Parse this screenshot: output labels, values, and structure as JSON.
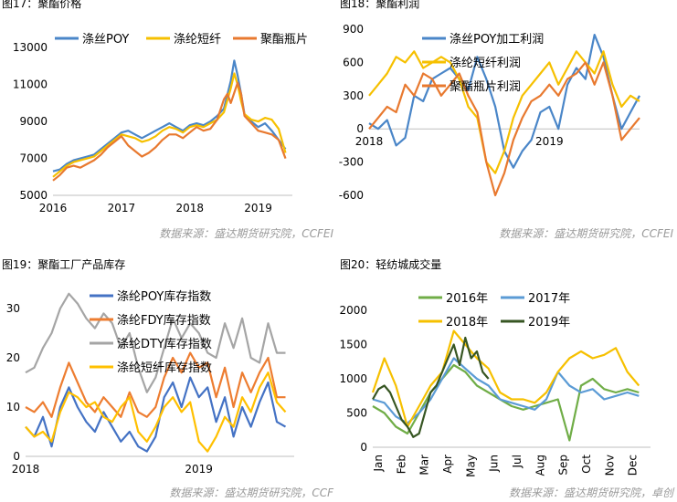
{
  "colors": {
    "blue": "#4a86c8",
    "orange": "#e8792f",
    "gold": "#f6c000",
    "gray": "#a5a5a5",
    "green": "#70ad47",
    "darkgreen": "#375623",
    "blue2": "#4472c4",
    "orange2": "#ed7d31",
    "yellow2": "#ffc000",
    "sky": "#5b9bd5"
  },
  "chart_data": [
    {
      "type": "line",
      "title": "图17：聚酯价格",
      "source": "数据来源：盛达期货研究院，CCFEI",
      "legend_position": "top",
      "xlim": [
        2016,
        2019.5
      ],
      "x_ticks": [
        2016,
        2017,
        2018,
        2019
      ],
      "x_tick_labels": [
        "2016",
        "2017",
        "2018",
        "2019"
      ],
      "ylim": [
        5000,
        14000
      ],
      "y_ticks": [
        5000,
        7000,
        9000,
        11000,
        13000
      ],
      "series": [
        {
          "name": "涤丝POY",
          "color_key": "blue",
          "x": [
            2016.0,
            2016.1,
            2016.2,
            2016.3,
            2016.4,
            2016.5,
            2016.6,
            2016.7,
            2016.8,
            2016.9,
            2017.0,
            2017.1,
            2017.2,
            2017.3,
            2017.4,
            2017.5,
            2017.6,
            2017.7,
            2017.8,
            2017.9,
            2018.0,
            2018.1,
            2018.2,
            2018.3,
            2018.4,
            2018.5,
            2018.6,
            2018.65,
            2018.7,
            2018.75,
            2018.8,
            2018.9,
            2019.0,
            2019.1,
            2019.2,
            2019.3,
            2019.4
          ],
          "y": [
            6300,
            6400,
            6700,
            6900,
            7000,
            7100,
            7200,
            7500,
            7800,
            8100,
            8400,
            8500,
            8300,
            8100,
            8300,
            8500,
            8700,
            8900,
            8700,
            8500,
            8800,
            8900,
            8800,
            9000,
            9300,
            9700,
            11200,
            12300,
            11500,
            10500,
            9400,
            9000,
            8700,
            8900,
            8500,
            8000,
            7500
          ]
        },
        {
          "name": "涤纶短纤",
          "color_key": "gold",
          "x": [
            2016.0,
            2016.1,
            2016.2,
            2016.3,
            2016.4,
            2016.5,
            2016.6,
            2016.7,
            2016.8,
            2016.9,
            2017.0,
            2017.1,
            2017.2,
            2017.3,
            2017.4,
            2017.5,
            2017.6,
            2017.7,
            2017.8,
            2017.9,
            2018.0,
            2018.1,
            2018.2,
            2018.3,
            2018.4,
            2018.5,
            2018.6,
            2018.65,
            2018.7,
            2018.75,
            2018.8,
            2018.9,
            2019.0,
            2019.1,
            2019.2,
            2019.3,
            2019.4
          ],
          "y": [
            6000,
            6300,
            6600,
            6800,
            6900,
            7000,
            7100,
            7400,
            7700,
            8000,
            8300,
            8200,
            8100,
            7900,
            8000,
            8200,
            8500,
            8700,
            8600,
            8400,
            8700,
            8800,
            8700,
            8900,
            9100,
            9500,
            10800,
            11600,
            11000,
            10100,
            9400,
            9100,
            9000,
            9200,
            9100,
            8600,
            7300
          ]
        },
        {
          "name": "聚酯瓶片",
          "color_key": "orange",
          "x": [
            2016.0,
            2016.1,
            2016.2,
            2016.3,
            2016.4,
            2016.5,
            2016.6,
            2016.7,
            2016.8,
            2016.9,
            2017.0,
            2017.1,
            2017.2,
            2017.3,
            2017.4,
            2017.5,
            2017.6,
            2017.7,
            2017.8,
            2017.9,
            2018.0,
            2018.1,
            2018.2,
            2018.3,
            2018.4,
            2018.5,
            2018.55,
            2018.6,
            2018.7,
            2018.75,
            2018.8,
            2018.9,
            2019.0,
            2019.1,
            2019.2,
            2019.3,
            2019.4
          ],
          "y": [
            5800,
            6100,
            6500,
            6600,
            6500,
            6700,
            6900,
            7200,
            7600,
            7900,
            8200,
            7700,
            7400,
            7100,
            7300,
            7600,
            8000,
            8300,
            8300,
            8100,
            8400,
            8700,
            8500,
            8600,
            9100,
            10200,
            10500,
            10000,
            11100,
            10500,
            9300,
            8900,
            8500,
            8400,
            8300,
            8000,
            7000
          ]
        }
      ]
    },
    {
      "type": "line",
      "title": "图18：聚酯利润",
      "source": "数据来源：盛达期货研究院，CCFEI",
      "legend_position": "top-left",
      "xlim": [
        2018,
        2019.5
      ],
      "x_ticks": [
        2018,
        2019
      ],
      "x_tick_labels": [
        "2018",
        "2019"
      ],
      "ylim": [
        -600,
        900
      ],
      "y_ticks": [
        -600,
        -300,
        0,
        300,
        600,
        900
      ],
      "series": [
        {
          "name": "涤丝POY加工利润",
          "color_key": "blue",
          "x": [
            2018.0,
            2018.05,
            2018.1,
            2018.15,
            2018.2,
            2018.25,
            2018.3,
            2018.35,
            2018.4,
            2018.45,
            2018.5,
            2018.55,
            2018.6,
            2018.65,
            2018.7,
            2018.75,
            2018.8,
            2018.85,
            2018.9,
            2018.95,
            2019.0,
            2019.05,
            2019.1,
            2019.15,
            2019.2,
            2019.25,
            2019.3,
            2019.35,
            2019.4,
            2019.45,
            2019.5
          ],
          "y": [
            50,
            0,
            80,
            -150,
            -80,
            300,
            250,
            450,
            500,
            550,
            450,
            350,
            650,
            450,
            200,
            -200,
            -350,
            -200,
            -100,
            150,
            200,
            0,
            400,
            550,
            450,
            850,
            650,
            300,
            0,
            150,
            300
          ]
        },
        {
          "name": "涤纶短纤利润",
          "color_key": "gold",
          "x": [
            2018.0,
            2018.05,
            2018.1,
            2018.15,
            2018.2,
            2018.25,
            2018.3,
            2018.35,
            2018.4,
            2018.45,
            2018.5,
            2018.55,
            2018.6,
            2018.65,
            2018.7,
            2018.75,
            2018.8,
            2018.85,
            2018.9,
            2018.95,
            2019.0,
            2019.05,
            2019.1,
            2019.15,
            2019.2,
            2019.25,
            2019.3,
            2019.35,
            2019.4,
            2019.45,
            2019.5
          ],
          "y": [
            300,
            400,
            500,
            650,
            600,
            700,
            550,
            600,
            650,
            600,
            450,
            200,
            100,
            -300,
            -400,
            -200,
            100,
            300,
            400,
            500,
            600,
            400,
            550,
            700,
            600,
            500,
            700,
            400,
            200,
            300,
            250
          ]
        },
        {
          "name": "聚酯瓶片利润",
          "color_key": "orange",
          "x": [
            2018.0,
            2018.05,
            2018.1,
            2018.15,
            2018.2,
            2018.25,
            2018.3,
            2018.35,
            2018.4,
            2018.45,
            2018.5,
            2018.55,
            2018.6,
            2018.65,
            2018.7,
            2018.75,
            2018.8,
            2018.85,
            2018.9,
            2018.95,
            2019.0,
            2019.05,
            2019.1,
            2019.15,
            2019.2,
            2019.25,
            2019.3,
            2019.35,
            2019.4,
            2019.45,
            2019.5
          ],
          "y": [
            0,
            100,
            200,
            150,
            400,
            300,
            500,
            450,
            300,
            400,
            500,
            300,
            150,
            -300,
            -600,
            -400,
            -100,
            100,
            250,
            300,
            400,
            300,
            450,
            500,
            600,
            400,
            600,
            300,
            -100,
            0,
            100
          ]
        }
      ]
    },
    {
      "type": "line",
      "title": "图19：聚酯工厂产品库存",
      "source": "数据来源：盛达期货研究院，CCF",
      "legend_position": "top",
      "xlim": [
        2018,
        2019.55
      ],
      "x_ticks": [
        2018,
        2019
      ],
      "x_tick_labels": [
        "2018",
        "2019"
      ],
      "ylim": [
        0,
        30
      ],
      "y_ticks": [
        0,
        10,
        20,
        30
      ],
      "series": [
        {
          "name": "涤纶POY库存指数",
          "color_key": "blue2",
          "x": [
            2018.0,
            2018.05,
            2018.1,
            2018.15,
            2018.2,
            2018.25,
            2018.3,
            2018.35,
            2018.4,
            2018.45,
            2018.5,
            2018.55,
            2018.6,
            2018.65,
            2018.7,
            2018.75,
            2018.8,
            2018.85,
            2018.9,
            2018.95,
            2019.0,
            2019.05,
            2019.1,
            2019.15,
            2019.2,
            2019.25,
            2019.3,
            2019.35,
            2019.4,
            2019.45,
            2019.5
          ],
          "y": [
            6,
            4,
            8,
            2,
            10,
            14,
            10,
            7,
            5,
            9,
            6,
            3,
            5,
            2,
            1,
            4,
            12,
            15,
            10,
            16,
            12,
            14,
            7,
            12,
            4,
            10,
            6,
            11,
            15,
            7,
            6
          ]
        },
        {
          "name": "涤纶FDY库存指数",
          "color_key": "orange2",
          "x": [
            2018.0,
            2018.05,
            2018.1,
            2018.15,
            2018.2,
            2018.25,
            2018.3,
            2018.35,
            2018.4,
            2018.45,
            2018.5,
            2018.55,
            2018.6,
            2018.65,
            2018.7,
            2018.75,
            2018.8,
            2018.85,
            2018.9,
            2018.95,
            2019.0,
            2019.05,
            2019.1,
            2019.15,
            2019.2,
            2019.25,
            2019.3,
            2019.35,
            2019.4,
            2019.45,
            2019.5
          ],
          "y": [
            10,
            9,
            11,
            8,
            14,
            19,
            15,
            11,
            9,
            12,
            10,
            8,
            13,
            9,
            8,
            10,
            16,
            20,
            17,
            21,
            18,
            19,
            12,
            18,
            10,
            17,
            13,
            17,
            20,
            12,
            12
          ]
        },
        {
          "name": "涤纶DTY库存指数",
          "color_key": "gray",
          "x": [
            2018.0,
            2018.05,
            2018.1,
            2018.15,
            2018.2,
            2018.25,
            2018.3,
            2018.35,
            2018.4,
            2018.45,
            2018.5,
            2018.55,
            2018.6,
            2018.65,
            2018.7,
            2018.75,
            2018.8,
            2018.85,
            2018.9,
            2018.95,
            2019.0,
            2019.05,
            2019.1,
            2019.15,
            2019.2,
            2019.25,
            2019.3,
            2019.35,
            2019.4,
            2019.45,
            2019.5
          ],
          "y": [
            17,
            18,
            22,
            25,
            30,
            33,
            31,
            28,
            26,
            29,
            27,
            22,
            25,
            18,
            13,
            16,
            22,
            28,
            24,
            27,
            25,
            21,
            20,
            27,
            22,
            28,
            20,
            19,
            27,
            21,
            21
          ]
        },
        {
          "name": "涤纶短纤库存指数",
          "color_key": "yellow2",
          "x": [
            2018.0,
            2018.05,
            2018.1,
            2018.15,
            2018.2,
            2018.25,
            2018.3,
            2018.35,
            2018.4,
            2018.45,
            2018.5,
            2018.55,
            2018.6,
            2018.65,
            2018.7,
            2018.75,
            2018.8,
            2018.85,
            2018.9,
            2018.95,
            2019.0,
            2019.05,
            2019.1,
            2019.15,
            2019.2,
            2019.25,
            2019.3,
            2019.35,
            2019.4,
            2019.45,
            2019.5
          ],
          "y": [
            6,
            4,
            5,
            3,
            9,
            13,
            12,
            10,
            11,
            8,
            7,
            10,
            12,
            5,
            3,
            6,
            10,
            12,
            9,
            11,
            3,
            1,
            4,
            8,
            6,
            12,
            9,
            14,
            17,
            11,
            9
          ]
        }
      ]
    },
    {
      "type": "line",
      "title": "图20：轻纺城成交量",
      "source": "数据来源：盛达期货研究院，卓创",
      "legend_position": "top",
      "xlim": [
        0,
        12
      ],
      "x_ticks": [
        0,
        1,
        2,
        3,
        4,
        5,
        6,
        7,
        8,
        9,
        10,
        11
      ],
      "x_tick_labels": [
        "Jan",
        "Feb",
        "Mar",
        "Apr",
        "May",
        "Jun",
        "Jul",
        "Aug",
        "Sep",
        "Oct",
        "Nov",
        "Dec"
      ],
      "ylim": [
        0,
        2000
      ],
      "y_ticks": [
        0,
        500,
        1000,
        1500,
        2000
      ],
      "series": [
        {
          "name": "2016年",
          "color_key": "green",
          "x": [
            0,
            0.5,
            1,
            1.5,
            2,
            2.5,
            3,
            3.5,
            4,
            4.5,
            5,
            5.5,
            6,
            6.5,
            7,
            7.5,
            8,
            8.5,
            9,
            9.5,
            10,
            10.5,
            11,
            11.5
          ],
          "y": [
            600,
            500,
            300,
            200,
            500,
            800,
            1000,
            1200,
            1100,
            900,
            800,
            700,
            600,
            550,
            600,
            650,
            700,
            100,
            900,
            1000,
            850,
            800,
            850,
            800
          ]
        },
        {
          "name": "2017年",
          "color_key": "sky",
          "x": [
            0,
            0.5,
            1,
            1.5,
            2,
            2.5,
            3,
            3.5,
            4,
            4.5,
            5,
            5.5,
            6,
            6.5,
            7,
            7.5,
            8,
            8.5,
            9,
            9.5,
            10,
            10.5,
            11,
            11.5
          ],
          "y": [
            700,
            650,
            450,
            350,
            500,
            700,
            1000,
            1300,
            1150,
            1000,
            900,
            700,
            650,
            600,
            550,
            700,
            1100,
            900,
            800,
            850,
            700,
            750,
            800,
            750
          ]
        },
        {
          "name": "2018年",
          "color_key": "gold",
          "x": [
            0,
            0.5,
            1,
            1.5,
            2,
            2.5,
            3,
            3.5,
            4,
            4.5,
            5,
            5.5,
            6,
            6.5,
            7,
            7.5,
            8,
            8.5,
            9,
            9.5,
            10,
            10.5,
            11,
            11.5
          ],
          "y": [
            800,
            1300,
            900,
            300,
            600,
            900,
            1100,
            1700,
            1500,
            1300,
            1150,
            800,
            700,
            700,
            650,
            800,
            1100,
            1300,
            1400,
            1300,
            1350,
            1450,
            1100,
            900
          ]
        },
        {
          "name": "2019年",
          "color_key": "darkgreen",
          "x": [
            0,
            0.25,
            0.5,
            0.75,
            1,
            1.25,
            1.5,
            1.75,
            2,
            2.25,
            2.5,
            2.75,
            3,
            3.25,
            3.5,
            3.75,
            4,
            4.25,
            4.5,
            4.75,
            5
          ],
          "y": [
            700,
            850,
            900,
            800,
            600,
            400,
            300,
            150,
            200,
            500,
            800,
            900,
            1100,
            1300,
            1500,
            1200,
            1600,
            1300,
            1400,
            1100,
            1000
          ]
        }
      ]
    }
  ]
}
